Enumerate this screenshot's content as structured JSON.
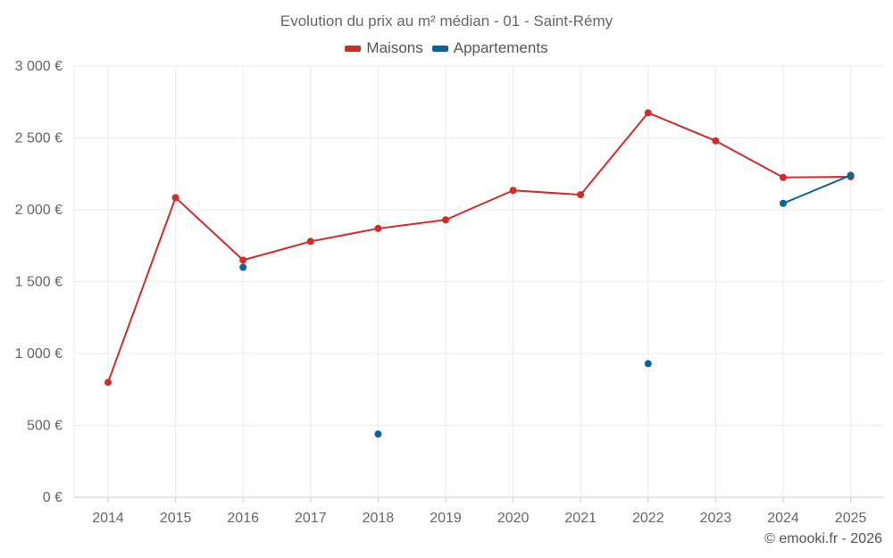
{
  "chart_data": {
    "type": "line",
    "title": "Evolution du prix au m² médian - 01 - Saint-Rémy",
    "categories": [
      "2014",
      "2015",
      "2016",
      "2017",
      "2018",
      "2019",
      "2020",
      "2021",
      "2022",
      "2023",
      "2024",
      "2025"
    ],
    "y_ticks": [
      "0 €",
      "500 €",
      "1 000 €",
      "1 500 €",
      "2 000 €",
      "2 500 €",
      "3 000 €"
    ],
    "y_tick_values": [
      0,
      500,
      1000,
      1500,
      2000,
      2500,
      3000
    ],
    "ylim": [
      0,
      3000
    ],
    "series": [
      {
        "name": "Maisons",
        "color": "#d22b2b",
        "values": [
          800,
          2085,
          1650,
          1780,
          1870,
          1930,
          2135,
          2105,
          2675,
          2480,
          2225,
          2230
        ]
      },
      {
        "name": "Appartements",
        "color": "#0a6599",
        "values": [
          null,
          null,
          1600,
          null,
          440,
          null,
          null,
          null,
          930,
          null,
          2045,
          2240
        ]
      }
    ],
    "legend_position": "top-center",
    "grid": true
  },
  "credit": "© emooki.fr - 2026"
}
